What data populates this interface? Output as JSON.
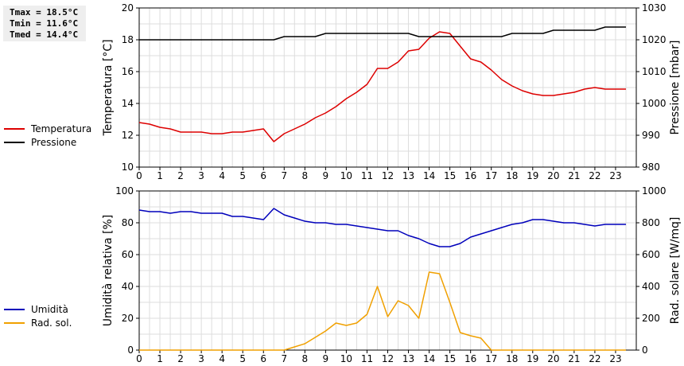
{
  "stats": [
    "Tmax = 18.5°C",
    "Tmin = 11.6°C",
    "Tmed = 14.4°C"
  ],
  "legend_top": [
    {
      "label": "Temperatura",
      "color": "#dd0000"
    },
    {
      "label": "Pressione",
      "color": "#000000"
    }
  ],
  "legend_bottom": [
    {
      "label": "Umidità",
      "color": "#0000bb"
    },
    {
      "label": "Rad. sol.",
      "color": "#f0a000"
    }
  ],
  "chart_data": [
    {
      "type": "line",
      "x": [
        0,
        0.5,
        1,
        1.5,
        2,
        2.5,
        3,
        3.5,
        4,
        4.5,
        5,
        5.5,
        6,
        6.5,
        7,
        7.5,
        8,
        8.5,
        9,
        9.5,
        10,
        10.5,
        11,
        11.5,
        12,
        12.5,
        13,
        13.5,
        14,
        14.5,
        15,
        15.5,
        16,
        16.5,
        17,
        17.5,
        18,
        18.5,
        19,
        19.5,
        20,
        20.5,
        21,
        21.5,
        22,
        22.5,
        23,
        23.5
      ],
      "xlim": [
        0,
        24
      ],
      "xticks": [
        "0",
        "1",
        "2",
        "3",
        "4",
        "5",
        "6",
        "7",
        "8",
        "9",
        "10",
        "11",
        "12",
        "13",
        "14",
        "15",
        "16",
        "17",
        "18",
        "19",
        "20",
        "21",
        "22",
        "23"
      ],
      "ylabel": "Temperatura [°C]",
      "ylim": [
        10,
        20
      ],
      "yticks": [
        10,
        12,
        14,
        16,
        18,
        20
      ],
      "y2label": "Pressione [mbar]",
      "y2lim": [
        980,
        1030
      ],
      "y2ticks": [
        980,
        990,
        1000,
        1010,
        1020,
        1030
      ],
      "grid": true,
      "series": [
        {
          "name": "Temperatura",
          "axis": "left",
          "color": "#dd0000",
          "values": [
            12.8,
            12.7,
            12.5,
            12.4,
            12.2,
            12.2,
            12.2,
            12.1,
            12.1,
            12.2,
            12.2,
            12.3,
            12.4,
            11.6,
            12.1,
            12.4,
            12.7,
            13.1,
            13.4,
            13.8,
            14.3,
            14.7,
            15.2,
            16.2,
            16.2,
            16.6,
            17.3,
            17.4,
            18.1,
            18.5,
            18.4,
            17.6,
            16.8,
            16.6,
            16.1,
            15.5,
            15.1,
            14.8,
            14.6,
            14.5,
            14.5,
            14.6,
            14.7,
            14.9,
            15.0,
            14.9,
            14.9,
            14.9
          ]
        },
        {
          "name": "Pressione",
          "axis": "right",
          "color": "#000000",
          "values": [
            1020,
            1020,
            1020,
            1020,
            1020,
            1020,
            1020,
            1020,
            1020,
            1020,
            1020,
            1020,
            1020,
            1020,
            1021,
            1021,
            1021,
            1021,
            1022,
            1022,
            1022,
            1022,
            1022,
            1022,
            1022,
            1022,
            1022,
            1021,
            1021,
            1021,
            1021,
            1021,
            1021,
            1021,
            1021,
            1021,
            1022,
            1022,
            1022,
            1022,
            1023,
            1023,
            1023,
            1023,
            1023,
            1024,
            1024,
            1024
          ]
        }
      ]
    },
    {
      "type": "line",
      "x": [
        0,
        0.5,
        1,
        1.5,
        2,
        2.5,
        3,
        3.5,
        4,
        4.5,
        5,
        5.5,
        6,
        6.5,
        7,
        7.5,
        8,
        8.5,
        9,
        9.5,
        10,
        10.5,
        11,
        11.5,
        12,
        12.5,
        13,
        13.5,
        14,
        14.5,
        15,
        15.5,
        16,
        16.5,
        17,
        17.5,
        18,
        18.5,
        19,
        19.5,
        20,
        20.5,
        21,
        21.5,
        22,
        22.5,
        23,
        23.5
      ],
      "xlim": [
        0,
        24
      ],
      "xticks": [
        "0",
        "1",
        "2",
        "3",
        "4",
        "5",
        "6",
        "7",
        "8",
        "9",
        "10",
        "11",
        "12",
        "13",
        "14",
        "15",
        "16",
        "17",
        "18",
        "19",
        "20",
        "21",
        "22",
        "23"
      ],
      "ylabel": "Umidità relativa [%]",
      "ylim": [
        0,
        100
      ],
      "yticks": [
        0,
        20,
        40,
        60,
        80,
        100
      ],
      "y2label": "Rad. solare [W/mq]",
      "y2lim": [
        0,
        1000
      ],
      "y2ticks": [
        0,
        200,
        400,
        600,
        800,
        1000
      ],
      "grid": true,
      "series": [
        {
          "name": "Umidità",
          "axis": "left",
          "color": "#0000bb",
          "values": [
            88,
            87,
            87,
            86,
            87,
            87,
            86,
            86,
            86,
            84,
            84,
            83,
            82,
            89,
            85,
            83,
            81,
            80,
            80,
            79,
            79,
            78,
            77,
            76,
            75,
            75,
            72,
            70,
            67,
            65,
            65,
            67,
            71,
            73,
            75,
            77,
            79,
            80,
            82,
            82,
            81,
            80,
            80,
            79,
            78,
            79,
            79,
            79
          ]
        },
        {
          "name": "Rad. sol.",
          "axis": "right",
          "color": "#f0a000",
          "values": [
            0,
            0,
            0,
            0,
            0,
            0,
            0,
            0,
            0,
            0,
            0,
            0,
            0,
            0,
            0,
            20,
            40,
            80,
            120,
            170,
            155,
            170,
            225,
            400,
            210,
            310,
            280,
            200,
            490,
            480,
            300,
            110,
            90,
            75,
            0,
            0,
            0,
            0,
            0,
            0,
            0,
            0,
            0,
            0,
            0,
            0,
            0,
            0
          ]
        }
      ]
    }
  ]
}
